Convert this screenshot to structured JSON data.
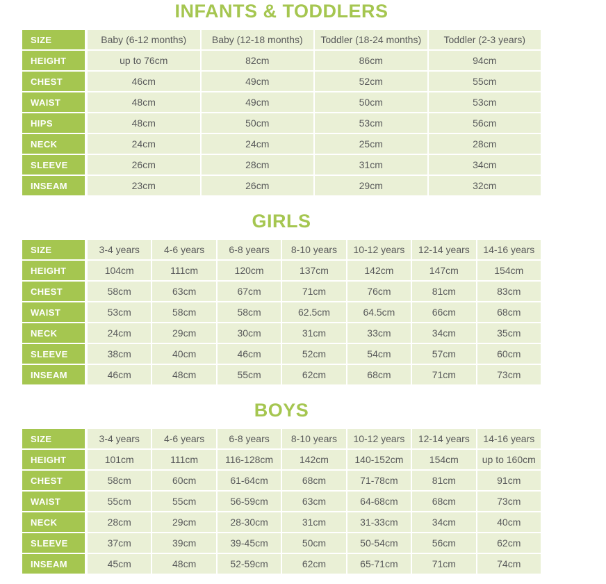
{
  "colors": {
    "accent_green": "#a5c650",
    "cell_background": "#eaf0d6",
    "cell_text": "#58595a",
    "label_text": "#ffffff"
  },
  "sections": [
    {
      "title": "INFANTS & TODDLERS",
      "table": {
        "header_label": "SIZE",
        "header_columns": [
          "Baby (6-12 months)",
          "Baby (12-18 months)",
          "Toddler (18-24 months)",
          "Toddler (2-3 years)"
        ],
        "rows": [
          {
            "label": "HEIGHT",
            "values": [
              "up to 76cm",
              "82cm",
              "86cm",
              "94cm"
            ]
          },
          {
            "label": "CHEST",
            "values": [
              "46cm",
              "49cm",
              "52cm",
              "55cm"
            ]
          },
          {
            "label": "WAIST",
            "values": [
              "48cm",
              "49cm",
              "50cm",
              "53cm"
            ]
          },
          {
            "label": "HIPS",
            "values": [
              "48cm",
              "50cm",
              "53cm",
              "56cm"
            ]
          },
          {
            "label": "NECK",
            "values": [
              "24cm",
              "24cm",
              "25cm",
              "28cm"
            ]
          },
          {
            "label": "SLEEVE",
            "values": [
              "26cm",
              "28cm",
              "31cm",
              "34cm"
            ]
          },
          {
            "label": "INSEAM",
            "values": [
              "23cm",
              "26cm",
              "29cm",
              "32cm"
            ]
          }
        ]
      }
    },
    {
      "title": "GIRLS",
      "table": {
        "header_label": "SIZE",
        "header_columns": [
          "3-4 years",
          "4-6 years",
          "6-8 years",
          "8-10 years",
          "10-12 years",
          "12-14 years",
          "14-16 years"
        ],
        "rows": [
          {
            "label": "HEIGHT",
            "values": [
              "104cm",
              "111cm",
              "120cm",
              "137cm",
              "142cm",
              "147cm",
              "154cm"
            ]
          },
          {
            "label": "CHEST",
            "values": [
              "58cm",
              "63cm",
              "67cm",
              "71cm",
              "76cm",
              "81cm",
              "83cm"
            ]
          },
          {
            "label": "WAIST",
            "values": [
              "53cm",
              "58cm",
              "58cm",
              "62.5cm",
              "64.5cm",
              "66cm",
              "68cm"
            ]
          },
          {
            "label": "NECK",
            "values": [
              "24cm",
              "29cm",
              "30cm",
              "31cm",
              "33cm",
              "34cm",
              "35cm"
            ]
          },
          {
            "label": "SLEEVE",
            "values": [
              "38cm",
              "40cm",
              "46cm",
              "52cm",
              "54cm",
              "57cm",
              "60cm"
            ]
          },
          {
            "label": "INSEAM",
            "values": [
              "46cm",
              "48cm",
              "55cm",
              "62cm",
              "68cm",
              "71cm",
              "73cm"
            ]
          }
        ]
      }
    },
    {
      "title": "BOYS",
      "table": {
        "header_label": "SIZE",
        "header_columns": [
          "3-4 years",
          "4-6 years",
          "6-8 years",
          "8-10 years",
          "10-12 years",
          "12-14 years",
          "14-16 years"
        ],
        "rows": [
          {
            "label": "HEIGHT",
            "values": [
              "101cm",
              "111cm",
              "116-128cm",
              "142cm",
              "140-152cm",
              "154cm",
              "up to 160cm"
            ]
          },
          {
            "label": "CHEST",
            "values": [
              "58cm",
              "60cm",
              "61-64cm",
              "68cm",
              "71-78cm",
              "81cm",
              "91cm"
            ]
          },
          {
            "label": "WAIST",
            "values": [
              "55cm",
              "55cm",
              "56-59cm",
              "63cm",
              "64-68cm",
              "68cm",
              "73cm"
            ]
          },
          {
            "label": "NECK",
            "values": [
              "28cm",
              "29cm",
              "28-30cm",
              "31cm",
              "31-33cm",
              "34cm",
              "40cm"
            ]
          },
          {
            "label": "SLEEVE",
            "values": [
              "37cm",
              "39cm",
              "39-45cm",
              "50cm",
              "50-54cm",
              "56cm",
              "62cm"
            ]
          },
          {
            "label": "INSEAM",
            "values": [
              "45cm",
              "48cm",
              "52-59cm",
              "62cm",
              "65-71cm",
              "71cm",
              "74cm"
            ]
          }
        ]
      }
    }
  ]
}
